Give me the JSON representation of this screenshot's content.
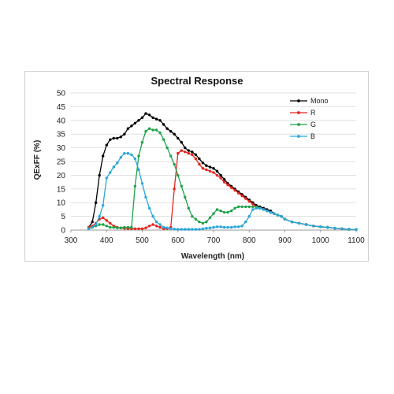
{
  "chart_data": {
    "type": "line",
    "title": "Spectral Response",
    "xlabel": "Wavelength (nm)",
    "ylabel": "QExFF (%)",
    "xlim": [
      300,
      1100
    ],
    "ylim": [
      0,
      50
    ],
    "xticks": [
      300,
      400,
      500,
      600,
      700,
      800,
      900,
      1000,
      1100
    ],
    "yticks": [
      0,
      5,
      10,
      15,
      20,
      25,
      30,
      35,
      40,
      45,
      50
    ],
    "grid": "horizontal",
    "legend_position": "top-right",
    "series": [
      {
        "name": "Mono",
        "color": "#000000",
        "points": [
          [
            350,
            1
          ],
          [
            360,
            3
          ],
          [
            370,
            10
          ],
          [
            380,
            20
          ],
          [
            390,
            27
          ],
          [
            400,
            31
          ],
          [
            410,
            33
          ],
          [
            420,
            33.5
          ],
          [
            430,
            33.5
          ],
          [
            440,
            34
          ],
          [
            450,
            35
          ],
          [
            460,
            37
          ],
          [
            470,
            38
          ],
          [
            480,
            39
          ],
          [
            490,
            40
          ],
          [
            500,
            41
          ],
          [
            510,
            42.5
          ],
          [
            520,
            42
          ],
          [
            530,
            41
          ],
          [
            540,
            40.5
          ],
          [
            550,
            40
          ],
          [
            560,
            38.5
          ],
          [
            570,
            37
          ],
          [
            580,
            36
          ],
          [
            590,
            35
          ],
          [
            600,
            33.5
          ],
          [
            610,
            32
          ],
          [
            620,
            30
          ],
          [
            630,
            29
          ],
          [
            640,
            28.5
          ],
          [
            650,
            27.5
          ],
          [
            660,
            26
          ],
          [
            670,
            24.5
          ],
          [
            680,
            23.5
          ],
          [
            690,
            23
          ],
          [
            700,
            22.5
          ],
          [
            710,
            21.5
          ],
          [
            720,
            20
          ],
          [
            730,
            18.5
          ],
          [
            740,
            17
          ],
          [
            750,
            16
          ],
          [
            760,
            15
          ],
          [
            770,
            14
          ],
          [
            780,
            13
          ],
          [
            790,
            12
          ],
          [
            800,
            11
          ],
          [
            810,
            10
          ],
          [
            820,
            9
          ],
          [
            830,
            8.5
          ],
          [
            840,
            8
          ],
          [
            850,
            7.5
          ],
          [
            860,
            7
          ],
          [
            870,
            6
          ],
          [
            880,
            5.5
          ],
          [
            890,
            5
          ],
          [
            900,
            4
          ],
          [
            920,
            3
          ],
          [
            940,
            2.5
          ],
          [
            960,
            2
          ],
          [
            980,
            1.5
          ],
          [
            1000,
            1.2
          ],
          [
            1020,
            1
          ],
          [
            1040,
            0.7
          ],
          [
            1060,
            0.5
          ],
          [
            1080,
            0.3
          ],
          [
            1100,
            0.2
          ]
        ]
      },
      {
        "name": "R",
        "color": "#e8231c",
        "points": [
          [
            350,
            1
          ],
          [
            360,
            1.5
          ],
          [
            370,
            2.5
          ],
          [
            380,
            4
          ],
          [
            390,
            4.5
          ],
          [
            400,
            3.5
          ],
          [
            410,
            2.5
          ],
          [
            420,
            1.5
          ],
          [
            430,
            1
          ],
          [
            440,
            0.8
          ],
          [
            450,
            0.6
          ],
          [
            460,
            0.5
          ],
          [
            470,
            0.5
          ],
          [
            480,
            0.5
          ],
          [
            490,
            0.5
          ],
          [
            500,
            0.5
          ],
          [
            510,
            0.8
          ],
          [
            520,
            1.5
          ],
          [
            530,
            2
          ],
          [
            540,
            1.5
          ],
          [
            550,
            1
          ],
          [
            560,
            0.5
          ],
          [
            570,
            0.5
          ],
          [
            580,
            1
          ],
          [
            590,
            15
          ],
          [
            600,
            28
          ],
          [
            610,
            29
          ],
          [
            620,
            28.5
          ],
          [
            630,
            28
          ],
          [
            640,
            27.5
          ],
          [
            650,
            26
          ],
          [
            660,
            24
          ],
          [
            670,
            22.5
          ],
          [
            680,
            22
          ],
          [
            690,
            21.5
          ],
          [
            700,
            21
          ],
          [
            710,
            20
          ],
          [
            720,
            19
          ],
          [
            730,
            17.5
          ],
          [
            740,
            16.5
          ],
          [
            750,
            15.5
          ],
          [
            760,
            14.5
          ],
          [
            770,
            13.5
          ],
          [
            780,
            12.5
          ],
          [
            790,
            11.5
          ],
          [
            800,
            10.5
          ],
          [
            810,
            9.5
          ],
          [
            820,
            8.5
          ],
          [
            830,
            8
          ],
          [
            840,
            7.5
          ],
          [
            850,
            7
          ],
          [
            860,
            6.5
          ],
          [
            870,
            6
          ],
          [
            880,
            5.5
          ],
          [
            890,
            5
          ],
          [
            900,
            4
          ],
          [
            920,
            3
          ],
          [
            940,
            2.5
          ],
          [
            960,
            2
          ],
          [
            980,
            1.5
          ],
          [
            1000,
            1.2
          ],
          [
            1020,
            1
          ],
          [
            1040,
            0.7
          ],
          [
            1060,
            0.5
          ],
          [
            1080,
            0.3
          ],
          [
            1100,
            0.2
          ]
        ]
      },
      {
        "name": "G",
        "color": "#1fa34a",
        "points": [
          [
            350,
            0.5
          ],
          [
            360,
            1
          ],
          [
            370,
            1.5
          ],
          [
            380,
            2
          ],
          [
            390,
            2
          ],
          [
            400,
            1.5
          ],
          [
            410,
            1
          ],
          [
            420,
            1
          ],
          [
            430,
            0.8
          ],
          [
            440,
            0.8
          ],
          [
            450,
            1
          ],
          [
            460,
            1
          ],
          [
            470,
            1
          ],
          [
            480,
            16
          ],
          [
            490,
            27
          ],
          [
            500,
            32
          ],
          [
            510,
            36
          ],
          [
            520,
            37
          ],
          [
            530,
            36.5
          ],
          [
            540,
            36.5
          ],
          [
            550,
            35.5
          ],
          [
            560,
            33
          ],
          [
            570,
            30
          ],
          [
            580,
            27
          ],
          [
            590,
            24
          ],
          [
            600,
            20
          ],
          [
            610,
            16
          ],
          [
            620,
            12
          ],
          [
            630,
            8
          ],
          [
            640,
            5
          ],
          [
            650,
            4
          ],
          [
            660,
            3
          ],
          [
            670,
            2.5
          ],
          [
            680,
            3
          ],
          [
            690,
            4.5
          ],
          [
            700,
            6
          ],
          [
            710,
            7.5
          ],
          [
            720,
            7
          ],
          [
            730,
            6.5
          ],
          [
            740,
            6.5
          ],
          [
            750,
            7
          ],
          [
            760,
            8
          ],
          [
            770,
            8.5
          ],
          [
            780,
            8.5
          ],
          [
            790,
            8.5
          ],
          [
            800,
            8.5
          ],
          [
            810,
            8.5
          ],
          [
            820,
            8.5
          ],
          [
            830,
            8
          ],
          [
            840,
            7.5
          ],
          [
            850,
            7
          ],
          [
            860,
            6.5
          ],
          [
            870,
            6
          ],
          [
            880,
            5.5
          ],
          [
            890,
            5
          ],
          [
            900,
            4
          ],
          [
            920,
            3
          ],
          [
            940,
            2.5
          ],
          [
            960,
            2
          ],
          [
            980,
            1.5
          ],
          [
            1000,
            1.2
          ],
          [
            1020,
            1
          ],
          [
            1040,
            0.7
          ],
          [
            1060,
            0.5
          ],
          [
            1080,
            0.3
          ],
          [
            1100,
            0.2
          ]
        ]
      },
      {
        "name": "B",
        "color": "#2aa7d9",
        "points": [
          [
            350,
            0.5
          ],
          [
            360,
            1
          ],
          [
            370,
            2
          ],
          [
            380,
            5
          ],
          [
            390,
            9
          ],
          [
            400,
            19
          ],
          [
            410,
            21
          ],
          [
            420,
            23
          ],
          [
            430,
            24.5
          ],
          [
            440,
            26.5
          ],
          [
            450,
            28
          ],
          [
            460,
            28
          ],
          [
            470,
            27.5
          ],
          [
            480,
            26
          ],
          [
            490,
            22
          ],
          [
            500,
            17
          ],
          [
            510,
            12
          ],
          [
            520,
            8
          ],
          [
            530,
            5
          ],
          [
            540,
            3
          ],
          [
            550,
            2
          ],
          [
            560,
            1
          ],
          [
            570,
            0.8
          ],
          [
            580,
            0.5
          ],
          [
            590,
            0.4
          ],
          [
            600,
            0.3
          ],
          [
            610,
            0.3
          ],
          [
            620,
            0.3
          ],
          [
            630,
            0.3
          ],
          [
            640,
            0.3
          ],
          [
            650,
            0.3
          ],
          [
            660,
            0.3
          ],
          [
            670,
            0.5
          ],
          [
            680,
            0.7
          ],
          [
            690,
            0.8
          ],
          [
            700,
            1
          ],
          [
            710,
            1.2
          ],
          [
            720,
            1.2
          ],
          [
            730,
            1
          ],
          [
            740,
            1
          ],
          [
            750,
            1
          ],
          [
            760,
            1.2
          ],
          [
            770,
            1.2
          ],
          [
            780,
            1.5
          ],
          [
            790,
            3
          ],
          [
            800,
            5
          ],
          [
            810,
            7.5
          ],
          [
            820,
            8
          ],
          [
            830,
            8
          ],
          [
            840,
            7.5
          ],
          [
            850,
            7
          ],
          [
            860,
            6.5
          ],
          [
            870,
            6
          ],
          [
            880,
            5.5
          ],
          [
            890,
            5
          ],
          [
            900,
            4
          ],
          [
            920,
            3
          ],
          [
            940,
            2.5
          ],
          [
            960,
            2
          ],
          [
            980,
            1.5
          ],
          [
            1000,
            1.2
          ],
          [
            1020,
            1
          ],
          [
            1040,
            0.7
          ],
          [
            1060,
            0.5
          ],
          [
            1080,
            0.3
          ],
          [
            1100,
            0.2
          ]
        ]
      }
    ]
  }
}
